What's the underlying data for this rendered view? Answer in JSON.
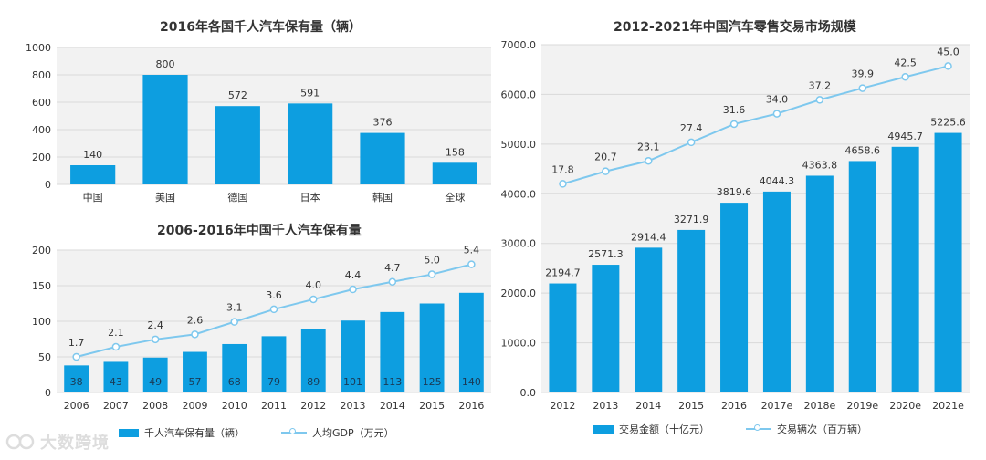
{
  "colors": {
    "bar": "#0d9ee0",
    "line": "#7ec8ee",
    "grid": "#d9d9d9",
    "axis_text": "#333333",
    "panel_bg": "#f2f2f2"
  },
  "watermark": {
    "text": "大数跨境",
    "icon": "logo-icon"
  },
  "chart_data": [
    {
      "type": "bar",
      "title": "2016年各国千人汽车保有量（辆）",
      "categories": [
        "中国",
        "美国",
        "德国",
        "日本",
        "韩国",
        "全球"
      ],
      "values": [
        140,
        800,
        572,
        591,
        376,
        158
      ],
      "ylim": [
        0,
        1000
      ],
      "yticks": [
        0,
        200,
        400,
        600,
        800,
        1000
      ],
      "xlabel": "",
      "ylabel": ""
    },
    {
      "type": "bar+line",
      "title": "2006-2016年中国千人汽车保有量",
      "categories": [
        "2006",
        "2007",
        "2008",
        "2009",
        "2010",
        "2011",
        "2012",
        "2013",
        "2014",
        "2015",
        "2016"
      ],
      "bar_series": {
        "name": "千人汽车保有量（辆）",
        "values": [
          38,
          43,
          49,
          57,
          68,
          79,
          89,
          101,
          113,
          125,
          140
        ]
      },
      "line_series": {
        "name": "人均GDP（万元）",
        "values": [
          1.7,
          2.1,
          2.4,
          2.6,
          3.1,
          3.6,
          4.0,
          4.4,
          4.7,
          5.0,
          5.4
        ]
      },
      "ylim": [
        0,
        200
      ],
      "yticks": [
        0,
        50,
        100,
        150,
        200
      ]
    },
    {
      "type": "bar+line",
      "title": "2012-2021年中国汽车零售交易市场规模",
      "categories": [
        "2012",
        "2013",
        "2014",
        "2015",
        "2016",
        "2017e",
        "2018e",
        "2019e",
        "2020e",
        "2021e"
      ],
      "bar_series": {
        "name": "交易金额（十亿元）",
        "values": [
          2194.7,
          2571.3,
          2914.4,
          3271.9,
          3819.6,
          4044.3,
          4363.8,
          4658.6,
          4945.7,
          5225.6
        ]
      },
      "line_series": {
        "name": "交易辆次（百万辆）",
        "values": [
          17.8,
          20.7,
          23.1,
          27.4,
          31.6,
          34.0,
          37.2,
          39.9,
          42.5,
          45.0
        ]
      },
      "ylim": [
        0,
        7000
      ],
      "yticks": [
        "0.0",
        "1000.0",
        "2000.0",
        "3000.0",
        "4000.0",
        "5000.0",
        "6000.0",
        "7000.0"
      ]
    }
  ]
}
